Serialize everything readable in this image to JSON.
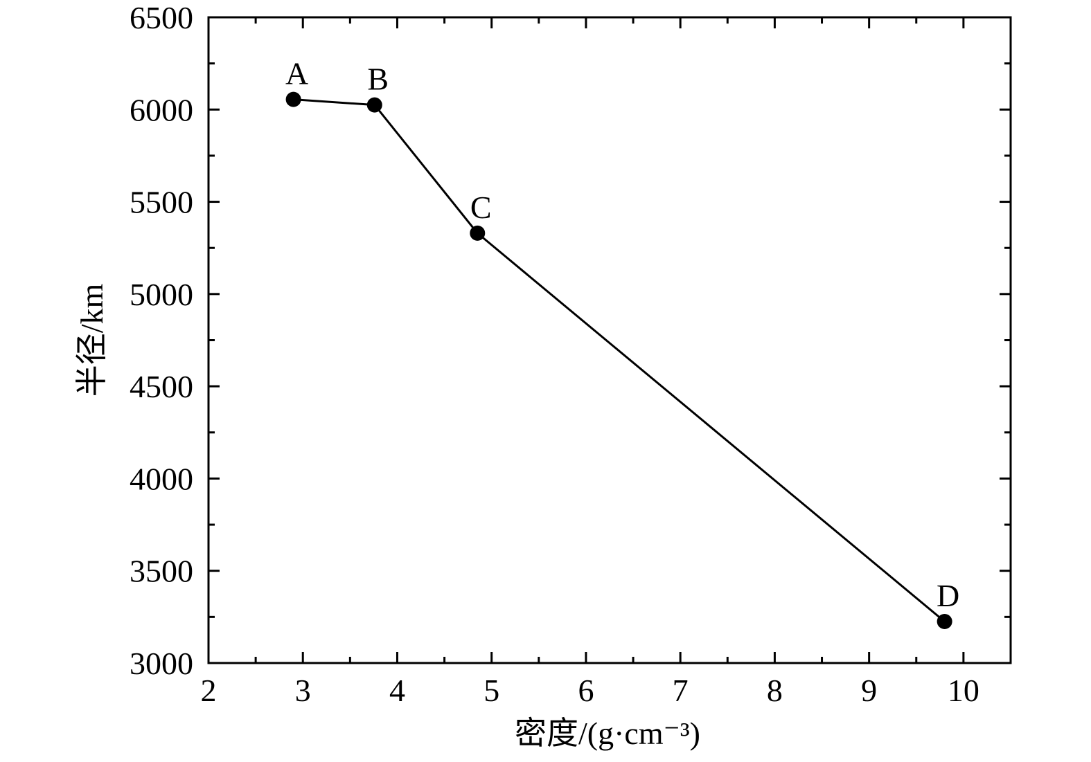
{
  "chart_data": {
    "type": "scatter",
    "xlabel": "密度/(g·cm⁻³)",
    "ylabel": "半径/km",
    "xlim": [
      2,
      10.5
    ],
    "ylim": [
      3000,
      6500
    ],
    "x_ticks": [
      2,
      3,
      4,
      5,
      6,
      7,
      8,
      9,
      10
    ],
    "y_ticks": [
      3000,
      3500,
      4000,
      4500,
      5000,
      5500,
      6000,
      6500
    ],
    "grid": false,
    "connected_line": true,
    "points": [
      {
        "label": "A",
        "x": 2.9,
        "y": 6055
      },
      {
        "label": "B",
        "x": 3.76,
        "y": 6025
      },
      {
        "label": "C",
        "x": 4.85,
        "y": 5330
      },
      {
        "label": "D",
        "x": 9.8,
        "y": 3225
      }
    ],
    "colors": {
      "line": "#000000",
      "marker": "#000000",
      "axis": "#000000"
    }
  }
}
